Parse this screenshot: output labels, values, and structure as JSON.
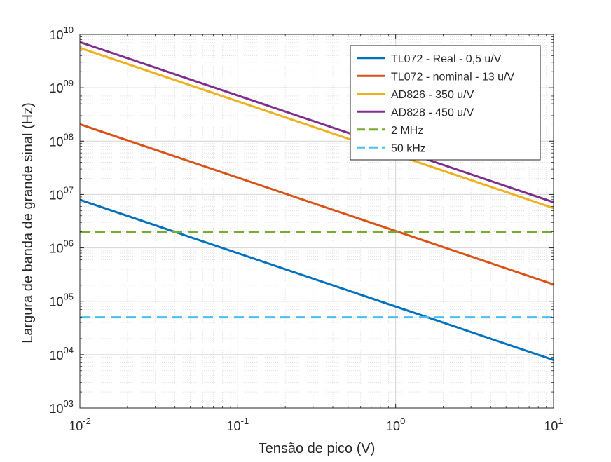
{
  "chart_data": {
    "type": "line",
    "title": "",
    "xlabel": "Tensão de pico (V)",
    "ylabel": "Largura de banda de grande sinal (Hz)",
    "xscale": "log",
    "yscale": "log",
    "xlim": [
      0.01,
      10
    ],
    "ylim": [
      1000,
      10000000000
    ],
    "grid": "major and minor",
    "legend_position": "top-right",
    "x_ticks": [
      {
        "value": 0.01,
        "base": "10",
        "exp": "-2"
      },
      {
        "value": 0.1,
        "base": "10",
        "exp": "-1"
      },
      {
        "value": 1,
        "base": "10",
        "exp": "0"
      },
      {
        "value": 10,
        "base": "10",
        "exp": "1"
      }
    ],
    "y_ticks": [
      {
        "value": 1000,
        "base": "10",
        "exp": "03"
      },
      {
        "value": 10000,
        "base": "10",
        "exp": "04"
      },
      {
        "value": 100000,
        "base": "10",
        "exp": "05"
      },
      {
        "value": 1000000,
        "base": "10",
        "exp": "06"
      },
      {
        "value": 10000000,
        "base": "10",
        "exp": "07"
      },
      {
        "value": 100000000,
        "base": "10",
        "exp": "08"
      },
      {
        "value": 1000000000,
        "base": "10",
        "exp": "09"
      },
      {
        "value": 10000000000,
        "base": "10",
        "exp": "10"
      }
    ],
    "series": [
      {
        "name": "TL072 - Real - 0,5 u/V",
        "color": "#0072BD",
        "style": "solid",
        "x": [
          0.01,
          10
        ],
        "y": [
          7960000,
          7960
        ]
      },
      {
        "name": "TL072 - nominal - 13 u/V",
        "color": "#D95319",
        "style": "solid",
        "x": [
          0.01,
          10
        ],
        "y": [
          207000000,
          207000
        ]
      },
      {
        "name": "AD826 - 350 u/V",
        "color": "#EDB120",
        "style": "solid",
        "x": [
          0.01,
          10
        ],
        "y": [
          5570000000,
          5570000
        ]
      },
      {
        "name": "AD828 - 450 u/V",
        "color": "#7E2F8E",
        "style": "solid",
        "x": [
          0.01,
          10
        ],
        "y": [
          7160000000,
          7160000
        ]
      },
      {
        "name": "2 MHz",
        "color": "#77AC30",
        "style": "dashed",
        "x": [
          0.01,
          10
        ],
        "y": [
          2000000,
          2000000
        ]
      },
      {
        "name": "50 kHz",
        "color": "#4DBEEE",
        "style": "dashed",
        "x": [
          0.01,
          10
        ],
        "y": [
          50000,
          50000
        ]
      }
    ]
  }
}
